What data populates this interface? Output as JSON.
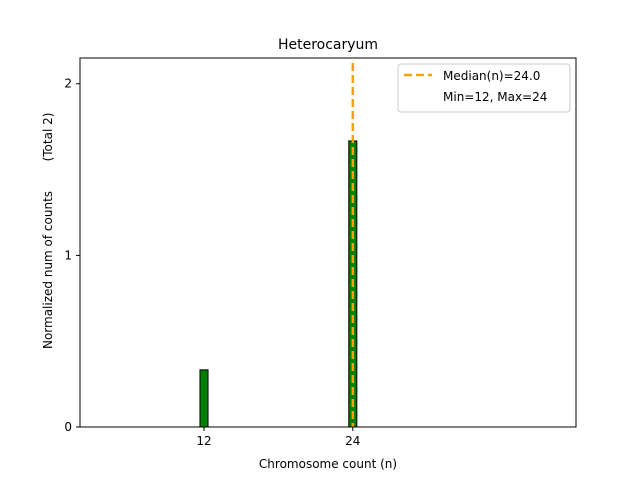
{
  "chart_data": {
    "type": "bar",
    "title": "Heterocaryum",
    "xlabel": "Chromosome count (n)",
    "ylabel": "Normalized num of counts",
    "ylabel_note": "(Total 2)",
    "xlim": [
      2,
      42
    ],
    "ylim": [
      0,
      2.15
    ],
    "x_ticks": [
      12,
      24
    ],
    "y_ticks": [
      0,
      1,
      2
    ],
    "bars": [
      {
        "x": 12,
        "value": 0.333
      },
      {
        "x": 24,
        "value": 1.667
      }
    ],
    "median": {
      "value": 24.0,
      "label": "Median(n)=24.0"
    },
    "minmax_label": "Min=12, Max=24",
    "legend_position": "top-right",
    "colors": {
      "bar": "#008000",
      "bar_edge": "#000000",
      "median": "#f0a30a"
    }
  }
}
